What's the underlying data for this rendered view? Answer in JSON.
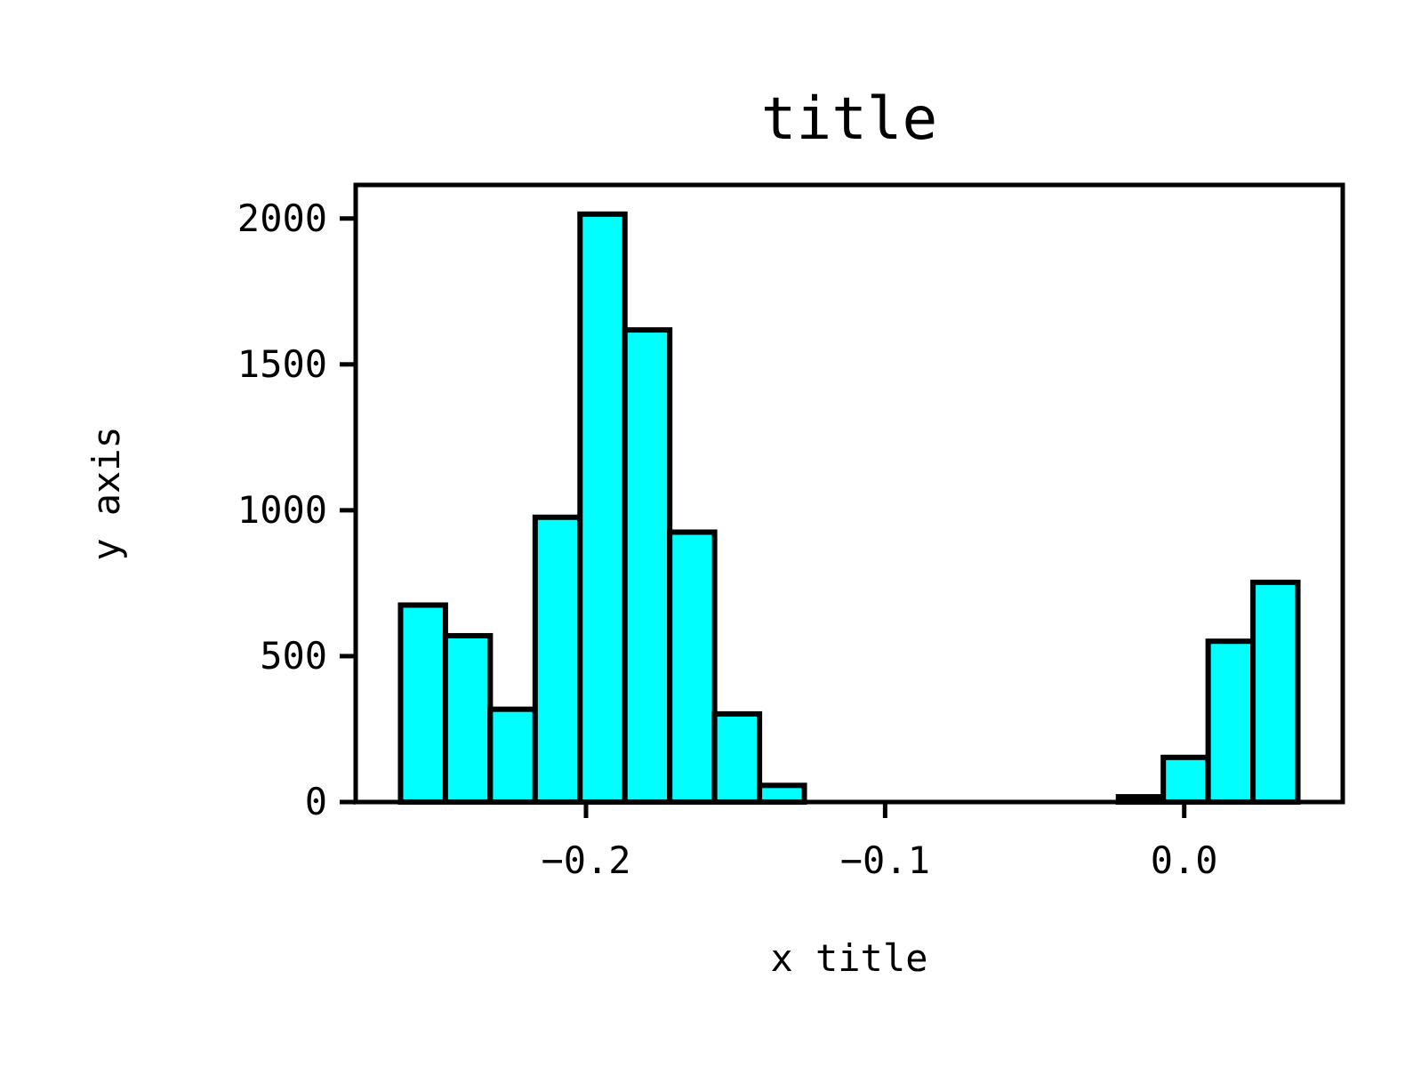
{
  "chart_data": {
    "type": "histogram",
    "title": "title",
    "xlabel": "x title",
    "ylabel": "y axis",
    "bins": [
      -0.262,
      -0.247,
      -0.232,
      -0.217,
      -0.202,
      -0.187,
      -0.172,
      -0.157,
      -0.142,
      -0.127,
      -0.112,
      -0.097,
      -0.082,
      -0.067,
      -0.052,
      -0.037,
      -0.022,
      -0.007,
      0.008,
      0.023,
      0.038
    ],
    "values": [
      675,
      570,
      318,
      976,
      2015,
      1618,
      925,
      302,
      57,
      0,
      0,
      0,
      0,
      0,
      0,
      0,
      18,
      153,
      551,
      753
    ],
    "color": "#00ffff",
    "xlim": [
      -0.277,
      0.053
    ],
    "ylim": [
      0,
      2115
    ],
    "xticks": [
      {
        "value": -0.2,
        "label": "−0.2"
      },
      {
        "value": -0.1,
        "label": "−0.1"
      },
      {
        "value": 0,
        "label": "0.0"
      }
    ],
    "yticks": [
      0,
      500,
      1000,
      1500,
      2000
    ],
    "grid": false
  }
}
